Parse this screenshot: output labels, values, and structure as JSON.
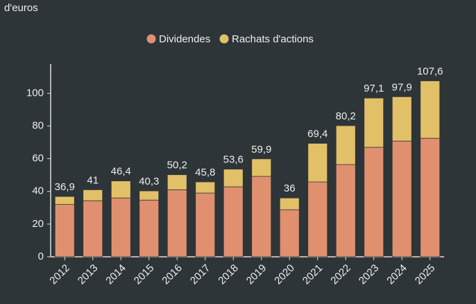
{
  "chart_data": {
    "type": "stacked_bar",
    "subtitle": "d'euros",
    "categories": [
      "2012",
      "2013",
      "2014",
      "2015",
      "2016",
      "2017",
      "2018",
      "2019",
      "2020",
      "2021",
      "2022",
      "2023",
      "2024",
      "2025"
    ],
    "series": [
      {
        "name": "Dividendes",
        "color": "#e0906f",
        "values": [
          32,
          34.3,
          36,
          34.7,
          41,
          39,
          42.8,
          49.2,
          28.8,
          45.8,
          56.4,
          67,
          70.8,
          72.5
        ]
      },
      {
        "name": "Rachats d'actions",
        "color": "#e2c067",
        "values": [
          4.9,
          6.7,
          10.4,
          5.6,
          9.2,
          6.8,
          10.8,
          10.7,
          7.2,
          23.6,
          23.8,
          30.1,
          27.1,
          35.1
        ]
      }
    ],
    "totals": {
      "values": [
        36.9,
        41,
        46.4,
        40.3,
        50.2,
        45.8,
        53.6,
        59.9,
        36,
        69.4,
        80.2,
        97.1,
        97.9,
        107.6
      ],
      "value_labels": [
        "36,9",
        "41",
        "46,4",
        "40,3",
        "50,2",
        "45,8",
        "53,6",
        "59,9",
        "36",
        "69,4",
        "80,2",
        "97,1",
        "97,9",
        "107,6"
      ]
    },
    "ylim": [
      0,
      118
    ],
    "yticks": [
      0,
      20,
      40,
      60,
      80,
      100
    ],
    "grid": false,
    "legend": "top"
  }
}
